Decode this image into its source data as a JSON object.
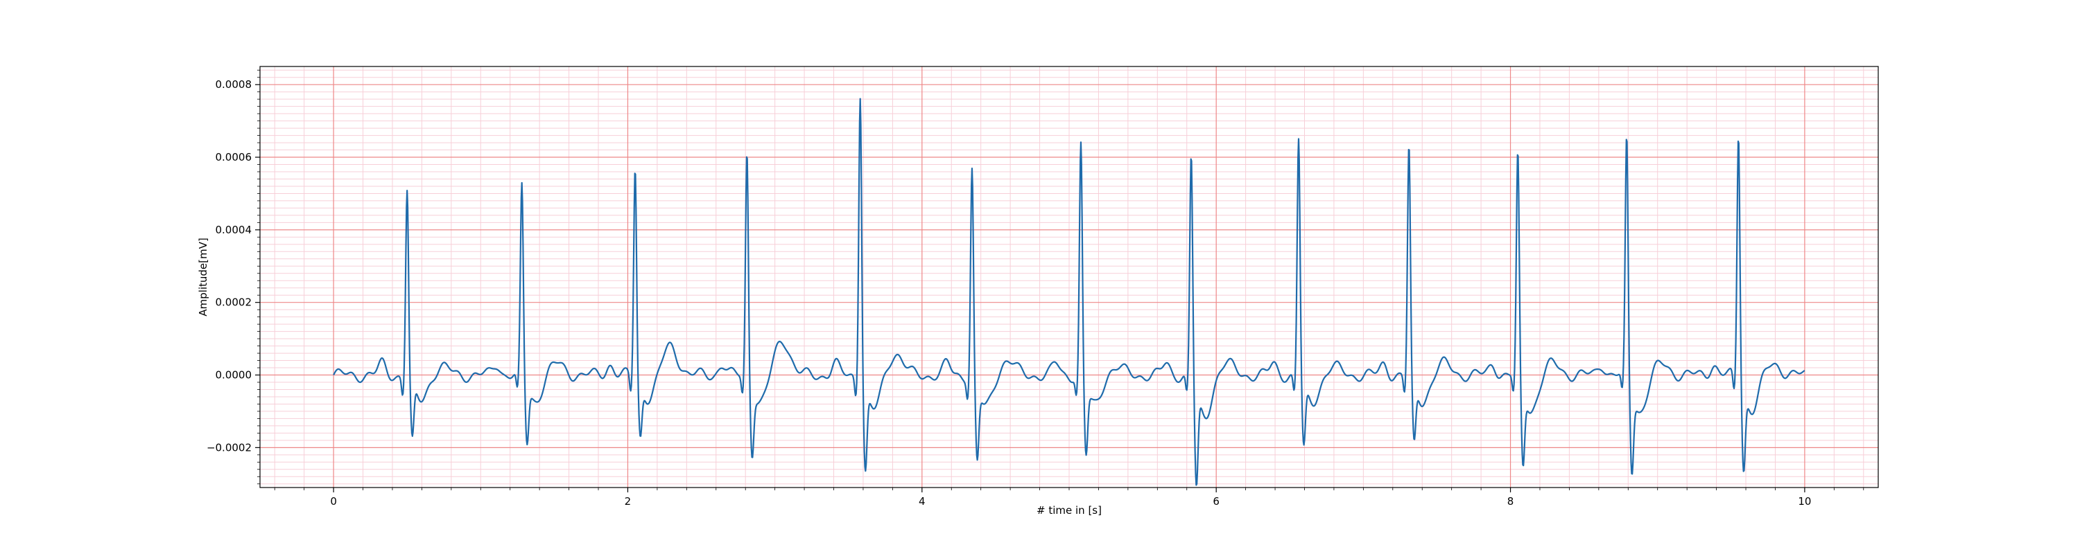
{
  "chart_data": {
    "type": "line",
    "title": "",
    "xlabel": "# time in [s]",
    "ylabel": "Amplitude[mV]",
    "xlim": [
      -0.5,
      10.5
    ],
    "ylim": [
      -0.00031,
      0.00085
    ],
    "xticks": [
      0,
      2,
      4,
      6,
      8,
      10
    ],
    "xtick_labels": [
      "0",
      "2",
      "4",
      "6",
      "8",
      "10"
    ],
    "yticks": [
      -0.0002,
      0.0,
      0.0002,
      0.0004,
      0.0006,
      0.0008
    ],
    "ytick_labels": [
      "−0.0002",
      "0.0000",
      "0.0002",
      "0.0004",
      "0.0006",
      "0.0008"
    ],
    "grid": {
      "major": true,
      "minor": true,
      "major_color": "#ee8888",
      "minor_color": "#f7cfd8"
    },
    "line_color": "#1f6bab",
    "series": [
      {
        "beats": [
          {
            "t": 0.5,
            "peak": 0.00052,
            "trough": -0.000155,
            "t_wave": 2e-05
          },
          {
            "t": 1.28,
            "peak": 0.000525,
            "trough": -0.000155,
            "t_wave": 3e-05
          },
          {
            "t": 2.05,
            "peak": 0.00058,
            "trough": -0.00014,
            "t_wave": 8e-05
          },
          {
            "t": 2.81,
            "peak": 0.000625,
            "trough": -0.000175,
            "t_wave": 0.0001
          },
          {
            "t": 3.58,
            "peak": 0.000795,
            "trough": -0.00022,
            "t_wave": 6e-05
          },
          {
            "t": 4.34,
            "peak": 0.00058,
            "trough": -0.0002,
            "t_wave": 4e-05
          },
          {
            "t": 5.08,
            "peak": 0.000645,
            "trough": -0.000185,
            "t_wave": 2e-05
          },
          {
            "t": 5.83,
            "peak": 0.00062,
            "trough": -0.00026,
            "t_wave": 3e-05
          },
          {
            "t": 6.56,
            "peak": 0.00066,
            "trough": -0.00017,
            "t_wave": 2e-05
          },
          {
            "t": 7.31,
            "peak": 0.000635,
            "trough": -0.00016,
            "t_wave": 3e-05
          },
          {
            "t": 8.05,
            "peak": 0.000615,
            "trough": -0.00021,
            "t_wave": 3e-05
          },
          {
            "t": 8.79,
            "peak": 0.00066,
            "trough": -0.00022,
            "t_wave": 3e-05
          },
          {
            "t": 9.55,
            "peak": 0.00068,
            "trough": -0.000215,
            "t_wave": 3e-05
          }
        ],
        "t_start": 0.0,
        "t_end": 10.0,
        "fs": 250,
        "baseline": 0.0
      }
    ]
  }
}
